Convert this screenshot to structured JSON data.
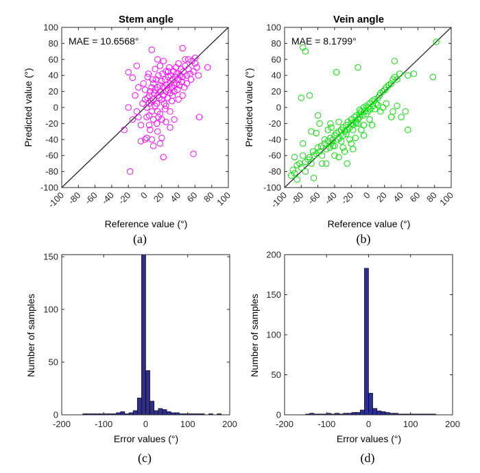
{
  "chart_data": [
    {
      "id": "a",
      "type": "scatter",
      "caption": "(a)",
      "title": "Stem angle",
      "xlabel": "Reference value (°)",
      "ylabel": "Predicted value (°)",
      "annotation": "MAE = 10.6568°",
      "xlim": [
        -100,
        100
      ],
      "ylim": [
        -100,
        100
      ],
      "xticks": [
        -100,
        -80,
        -60,
        -40,
        -20,
        0,
        20,
        40,
        60,
        80,
        100
      ],
      "yticks": [
        -100,
        -80,
        -60,
        -40,
        -20,
        0,
        20,
        40,
        60,
        80,
        100
      ],
      "marker_color": "#ff00ff",
      "line_color": "#303030",
      "reference_line": [
        [
          -100,
          -100
        ],
        [
          100,
          100
        ]
      ],
      "points": [
        [
          -25,
          -28
        ],
        [
          -20,
          0
        ],
        [
          -20,
          44
        ],
        [
          -15,
          37
        ],
        [
          -10,
          52
        ],
        [
          -18,
          -80
        ],
        [
          -5,
          -42
        ],
        [
          0,
          -40
        ],
        [
          2,
          -38
        ],
        [
          5,
          -10
        ],
        [
          8,
          -40
        ],
        [
          10,
          -48
        ],
        [
          15,
          -30
        ],
        [
          20,
          -38
        ],
        [
          18,
          -45
        ],
        [
          22,
          -62
        ],
        [
          25,
          -18
        ],
        [
          30,
          -25
        ],
        [
          35,
          -15
        ],
        [
          58,
          -58
        ],
        [
          65,
          -12
        ],
        [
          8,
          72
        ],
        [
          15,
          60
        ],
        [
          22,
          58
        ],
        [
          28,
          45
        ],
        [
          45,
          74
        ],
        [
          52,
          60
        ],
        [
          60,
          55
        ],
        [
          75,
          50
        ],
        [
          -5,
          -22
        ],
        [
          -8,
          -12
        ],
        [
          -10,
          -5
        ],
        [
          -3,
          5
        ],
        [
          0,
          10
        ],
        [
          2,
          0
        ],
        [
          3,
          12
        ],
        [
          5,
          15
        ],
        [
          5,
          5
        ],
        [
          6,
          20
        ],
        [
          7,
          8
        ],
        [
          8,
          25
        ],
        [
          8,
          -5
        ],
        [
          10,
          10
        ],
        [
          10,
          30
        ],
        [
          11,
          18
        ],
        [
          12,
          2
        ],
        [
          12,
          22
        ],
        [
          13,
          35
        ],
        [
          14,
          5
        ],
        [
          15,
          15
        ],
        [
          15,
          25
        ],
        [
          16,
          40
        ],
        [
          17,
          12
        ],
        [
          18,
          28
        ],
        [
          18,
          -8
        ],
        [
          19,
          20
        ],
        [
          20,
          10
        ],
        [
          20,
          33
        ],
        [
          21,
          42
        ],
        [
          22,
          15
        ],
        [
          22,
          25
        ],
        [
          23,
          5
        ],
        [
          24,
          35
        ],
        [
          25,
          20
        ],
        [
          25,
          45
        ],
        [
          26,
          28
        ],
        [
          27,
          12
        ],
        [
          28,
          38
        ],
        [
          28,
          22
        ],
        [
          29,
          50
        ],
        [
          30,
          30
        ],
        [
          30,
          18
        ],
        [
          31,
          40
        ],
        [
          32,
          8
        ],
        [
          32,
          25
        ],
        [
          33,
          35
        ],
        [
          34,
          45
        ],
        [
          35,
          28
        ],
        [
          35,
          20
        ],
        [
          36,
          38
        ],
        [
          37,
          50
        ],
        [
          38,
          30
        ],
        [
          38,
          42
        ],
        [
          39,
          22
        ],
        [
          40,
          35
        ],
        [
          40,
          55
        ],
        [
          41,
          28
        ],
        [
          42,
          40
        ],
        [
          43,
          48
        ],
        [
          44,
          32
        ],
        [
          45,
          38
        ],
        [
          46,
          45
        ],
        [
          47,
          25
        ],
        [
          48,
          52
        ],
        [
          50,
          40
        ],
        [
          50,
          30
        ],
        [
          52,
          48
        ],
        [
          54,
          42
        ],
        [
          55,
          35
        ],
        [
          56,
          58
        ],
        [
          58,
          45
        ],
        [
          60,
          62
        ],
        [
          62,
          50
        ],
        [
          64,
          40
        ],
        [
          -2,
          30
        ],
        [
          0,
          22
        ],
        [
          3,
          38
        ],
        [
          5,
          -22
        ],
        [
          10,
          -15
        ],
        [
          15,
          -5
        ],
        [
          -12,
          15
        ],
        [
          -15,
          -15
        ],
        [
          -8,
          25
        ],
        [
          12,
          48
        ],
        [
          20,
          -15
        ],
        [
          25,
          2
        ],
        [
          30,
          -5
        ],
        [
          40,
          10
        ],
        [
          45,
          15
        ],
        [
          48,
          60
        ],
        [
          6,
          -28
        ],
        [
          14,
          -20
        ],
        [
          18,
          52
        ],
        [
          33,
          15
        ],
        [
          2,
          -12
        ],
        [
          4,
          42
        ],
        [
          9,
          35
        ],
        [
          16,
          -12
        ],
        [
          24,
          -2
        ]
      ]
    },
    {
      "id": "b",
      "type": "scatter",
      "caption": "(b)",
      "title": "Vein angle",
      "xlabel": "Reference value (°)",
      "ylabel": "Predicted value (°)",
      "annotation": "MAE = 8.1799°",
      "xlim": [
        -100,
        100
      ],
      "ylim": [
        -100,
        100
      ],
      "xticks": [
        -100,
        -80,
        -60,
        -40,
        -20,
        0,
        20,
        40,
        60,
        80,
        100
      ],
      "yticks": [
        -100,
        -80,
        -60,
        -40,
        -20,
        0,
        20,
        40,
        60,
        80,
        100
      ],
      "marker_color": "#00e000",
      "line_color": "#303030",
      "reference_line": [
        [
          -100,
          -100
        ],
        [
          100,
          100
        ]
      ],
      "points": [
        [
          -90,
          -78
        ],
        [
          -88,
          -82
        ],
        [
          -85,
          -72
        ],
        [
          -82,
          -70
        ],
        [
          -80,
          -75
        ],
        [
          -78,
          -60
        ],
        [
          -75,
          -68
        ],
        [
          -72,
          -65
        ],
        [
          -70,
          -62
        ],
        [
          -68,
          -70
        ],
        [
          -66,
          -55
        ],
        [
          -65,
          -60
        ],
        [
          -62,
          -58
        ],
        [
          -60,
          -50
        ],
        [
          -58,
          -55
        ],
        [
          -56,
          -48
        ],
        [
          -55,
          -60
        ],
        [
          -52,
          -45
        ],
        [
          -50,
          -52
        ],
        [
          -48,
          -42
        ],
        [
          -46,
          -50
        ],
        [
          -45,
          -38
        ],
        [
          -44,
          -45
        ],
        [
          -42,
          -40
        ],
        [
          -40,
          -35
        ],
        [
          -40,
          -48
        ],
        [
          -38,
          -32
        ],
        [
          -36,
          -40
        ],
        [
          -35,
          -30
        ],
        [
          -34,
          -38
        ],
        [
          -32,
          -28
        ],
        [
          -30,
          -35
        ],
        [
          -30,
          -25
        ],
        [
          -28,
          -30
        ],
        [
          -26,
          -22
        ],
        [
          -25,
          -28
        ],
        [
          -24,
          -18
        ],
        [
          -22,
          -25
        ],
        [
          -20,
          -20
        ],
        [
          -20,
          -15
        ],
        [
          -18,
          -22
        ],
        [
          -16,
          -12
        ],
        [
          -15,
          -18
        ],
        [
          -14,
          -10
        ],
        [
          -12,
          -15
        ],
        [
          -10,
          -8
        ],
        [
          -10,
          -12
        ],
        [
          -8,
          -5
        ],
        [
          -6,
          -10
        ],
        [
          -5,
          0
        ],
        [
          -4,
          -5
        ],
        [
          -2,
          2
        ],
        [
          0,
          0
        ],
        [
          0,
          -5
        ],
        [
          2,
          5
        ],
        [
          3,
          -2
        ],
        [
          5,
          8
        ],
        [
          6,
          2
        ],
        [
          8,
          10
        ],
        [
          10,
          5
        ],
        [
          12,
          12
        ],
        [
          14,
          15
        ],
        [
          15,
          18
        ],
        [
          18,
          20
        ],
        [
          20,
          22
        ],
        [
          22,
          25
        ],
        [
          25,
          28
        ],
        [
          28,
          30
        ],
        [
          30,
          35
        ],
        [
          32,
          38
        ],
        [
          -78,
          75
        ],
        [
          -75,
          70
        ],
        [
          -80,
          12
        ],
        [
          -70,
          15
        ],
        [
          -38,
          44
        ],
        [
          -12,
          50
        ],
        [
          -65,
          -88
        ],
        [
          -55,
          -70
        ],
        [
          -62,
          -32
        ],
        [
          -48,
          -28
        ],
        [
          -45,
          -20
        ],
        [
          -35,
          -18
        ],
        [
          -28,
          -55
        ],
        [
          -25,
          -70
        ],
        [
          -20,
          -45
        ],
        [
          -15,
          -38
        ],
        [
          -18,
          -52
        ],
        [
          -8,
          -28
        ],
        [
          -5,
          -22
        ],
        [
          2,
          -15
        ],
        [
          5,
          -22
        ],
        [
          -68,
          -30
        ],
        [
          -50,
          -70
        ],
        [
          -40,
          -60
        ],
        [
          -30,
          -50
        ],
        [
          -22,
          -40
        ],
        [
          -5,
          -35
        ],
        [
          15,
          -5
        ],
        [
          18,
          0
        ],
        [
          22,
          5
        ],
        [
          30,
          -5
        ],
        [
          35,
          2
        ],
        [
          40,
          -12
        ],
        [
          45,
          -5
        ],
        [
          48,
          -28
        ],
        [
          28,
          -12
        ],
        [
          25,
          28
        ],
        [
          35,
          35
        ],
        [
          38,
          42
        ],
        [
          48,
          40
        ],
        [
          55,
          42
        ],
        [
          78,
          38
        ],
        [
          82,
          82
        ],
        [
          32,
          58
        ],
        [
          -60,
          -10
        ],
        [
          -58,
          -20
        ],
        [
          -85,
          -90
        ],
        [
          -92,
          -85
        ],
        [
          -75,
          -80
        ],
        [
          -88,
          -62
        ],
        [
          -78,
          -45
        ],
        [
          -35,
          -62
        ],
        [
          -52,
          -40
        ],
        [
          -44,
          -25
        ],
        [
          -10,
          -3
        ],
        [
          -2,
          -8
        ],
        [
          8,
          -2
        ],
        [
          12,
          3
        ],
        [
          -14,
          -20
        ],
        [
          -32,
          -42
        ],
        [
          -42,
          -48
        ],
        [
          -26,
          -33
        ],
        [
          -18,
          -28
        ],
        [
          -12,
          -20
        ]
      ]
    },
    {
      "id": "c",
      "type": "bar",
      "caption": "(c)",
      "title": "",
      "xlabel": "Error values (°)",
      "ylabel": "Number of samples",
      "xlim": [
        -200,
        200
      ],
      "ylim": [
        0,
        152
      ],
      "xticks": [
        -200,
        -100,
        0,
        100,
        200
      ],
      "yticks": [
        0,
        50,
        100,
        150
      ],
      "bar_color": "#2e2e91",
      "bin_width": 10,
      "bin_centers": [
        -145,
        -135,
        -125,
        -115,
        -105,
        -95,
        -85,
        -75,
        -65,
        -55,
        -45,
        -35,
        -25,
        -15,
        -5,
        5,
        15,
        25,
        35,
        45,
        55,
        65,
        75,
        85,
        95,
        105,
        115,
        125,
        135,
        145,
        155,
        165,
        175
      ],
      "values": [
        1,
        1,
        1,
        1,
        1,
        1,
        1,
        1,
        2,
        3,
        1,
        2,
        4,
        16,
        152,
        42,
        13,
        4,
        6,
        5,
        3,
        2,
        2,
        1,
        1,
        1,
        1,
        1,
        1,
        0,
        1,
        0,
        1
      ]
    },
    {
      "id": "d",
      "type": "bar",
      "caption": "(d)",
      "title": "",
      "xlabel": "Error values (°)",
      "ylabel": "Number of samples",
      "xlim": [
        -200,
        200
      ],
      "ylim": [
        0,
        200
      ],
      "xticks": [
        -200,
        -100,
        0,
        100,
        200
      ],
      "yticks": [
        0,
        50,
        100,
        150,
        200
      ],
      "bar_color": "#2e2e91",
      "bin_width": 10,
      "bin_centers": [
        -145,
        -135,
        -125,
        -115,
        -105,
        -95,
        -85,
        -75,
        -65,
        -55,
        -45,
        -35,
        -25,
        -15,
        -5,
        5,
        15,
        25,
        35,
        45,
        55,
        65,
        75,
        85,
        95,
        105,
        115,
        125,
        135,
        145,
        155
      ],
      "values": [
        1,
        2,
        1,
        1,
        1,
        2,
        1,
        2,
        1,
        2,
        2,
        3,
        3,
        6,
        183,
        27,
        8,
        5,
        4,
        3,
        2,
        2,
        1,
        1,
        1,
        1,
        1,
        1,
        1,
        1,
        1
      ]
    }
  ]
}
